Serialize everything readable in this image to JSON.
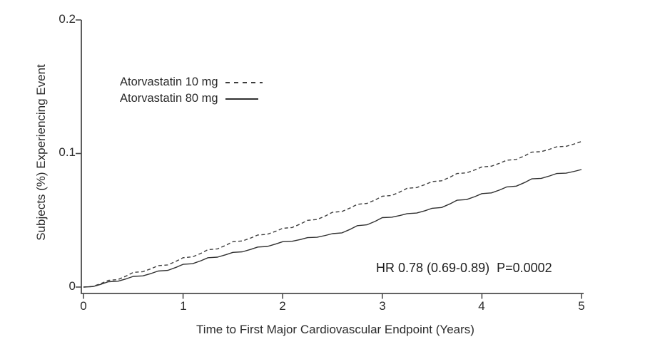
{
  "figure": {
    "background": "#ffffff",
    "text_color": "#2b2b2b",
    "axis_color": "#4c4c4c"
  },
  "chart_data": {
    "type": "line",
    "subtype": "kaplan-meier-cumulative-incidence",
    "title": "",
    "xlabel": "Time to First Major Cardiovascular Endpoint (Years)",
    "ylabel": "Subjects (%) Experiencing Event",
    "xlim": [
      0,
      5
    ],
    "ylim": [
      0,
      0.2
    ],
    "grid": false,
    "legend_position": "upper-left-inside",
    "x_ticks": {
      "values": [
        0,
        1,
        2,
        3,
        4,
        5
      ],
      "labels": [
        "0",
        "1",
        "2",
        "3",
        "4",
        "5"
      ]
    },
    "y_ticks": {
      "values": [
        0,
        0.1,
        0.2
      ],
      "labels": [
        "0",
        "0.1",
        "0.2"
      ]
    },
    "x": [
      0,
      0.25,
      0.5,
      0.75,
      1,
      1.25,
      1.5,
      1.75,
      2,
      2.25,
      2.5,
      2.75,
      3,
      3.25,
      3.5,
      3.75,
      4,
      4.25,
      4.5,
      4.75,
      5
    ],
    "series": [
      {
        "name": "Atorvastatin 10 mg",
        "style": "dashed",
        "color": "#3d3d3d",
        "values": [
          0,
          0.005,
          0.011,
          0.016,
          0.022,
          0.028,
          0.034,
          0.039,
          0.044,
          0.05,
          0.056,
          0.062,
          0.068,
          0.074,
          0.079,
          0.085,
          0.09,
          0.095,
          0.101,
          0.105,
          0.109
        ]
      },
      {
        "name": "Atorvastatin 80 mg",
        "style": "solid",
        "color": "#303030",
        "values": [
          0,
          0.004,
          0.008,
          0.012,
          0.017,
          0.022,
          0.026,
          0.03,
          0.034,
          0.037,
          0.04,
          0.046,
          0.052,
          0.055,
          0.059,
          0.065,
          0.07,
          0.075,
          0.081,
          0.085,
          0.088
        ]
      }
    ],
    "annotation": "HR 0.78 (0.69-0.89)  P=0.0002"
  }
}
